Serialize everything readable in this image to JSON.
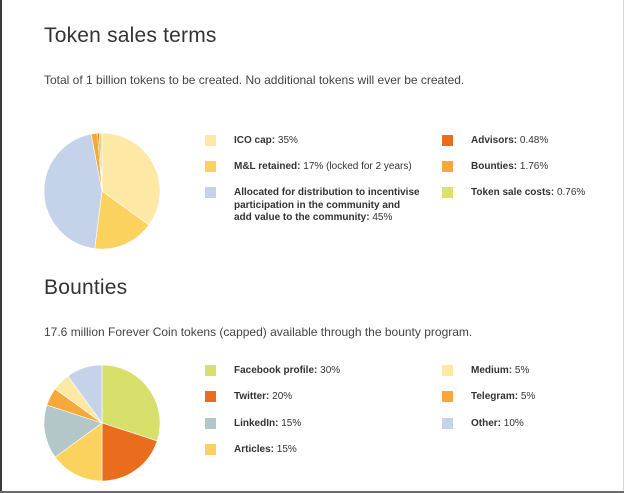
{
  "sections": [
    {
      "heading": "Token sales terms",
      "description": "Total of 1 billion tokens to be created. No additional tokens will ever be created.",
      "legend_left": [
        {
          "name": "ICO cap:",
          "value": "35%",
          "color": "#fde9a5"
        },
        {
          "name": "M&L retained:",
          "value": "17% (locked for 2 years)",
          "color": "#fcd25e"
        },
        {
          "name": "Allocated for distribution to incentivise participation in the community and add value to the community:",
          "value": "45%",
          "color": "#c5d3ea"
        }
      ],
      "legend_right": [
        {
          "name": "Advisors:",
          "value": "0.48%",
          "color": "#ea6d1d"
        },
        {
          "name": "Bounties:",
          "value": "1.76%",
          "color": "#f6a83b"
        },
        {
          "name": "Token sale costs:",
          "value": "0.76%",
          "color": "#d8e36b"
        }
      ]
    },
    {
      "heading": "Bounties",
      "description": "17.6 million Forever Coin tokens (capped) available through the bounty program.",
      "legend_left": [
        {
          "name": "Facebook profile:",
          "value": "30%",
          "color": "#d6e06a"
        },
        {
          "name": "Twitter:",
          "value": "20%",
          "color": "#ea6d1d"
        },
        {
          "name": "LinkedIn:",
          "value": "15%",
          "color": "#b3c6c8"
        },
        {
          "name": "Articles:",
          "value": "15%",
          "color": "#fcd25e"
        }
      ],
      "legend_right": [
        {
          "name": "Medium:",
          "value": "5%",
          "color": "#fde9a5"
        },
        {
          "name": "Telegram:",
          "value": "5%",
          "color": "#f6a83b"
        },
        {
          "name": "Other:",
          "value": "10%",
          "color": "#c5d3ea"
        }
      ]
    }
  ],
  "chart_data": [
    {
      "type": "pie",
      "title": "Token sales terms",
      "categories": [
        "ICO cap",
        "M&L retained",
        "Allocated for distribution to incentivise participation in the community and add value to the community",
        "Bounties",
        "Advisors",
        "Token sale costs"
      ],
      "values": [
        35,
        17,
        45,
        1.76,
        0.48,
        0.76
      ],
      "colors": [
        "#fde9a5",
        "#fcd25e",
        "#c5d3ea",
        "#f6a83b",
        "#ea6d1d",
        "#d8e36b"
      ],
      "start_angle_deg": 0,
      "legend_position": "right"
    },
    {
      "type": "pie",
      "title": "Bounties",
      "categories": [
        "Facebook profile",
        "Twitter",
        "Articles",
        "LinkedIn",
        "Telegram",
        "Medium",
        "Other"
      ],
      "values": [
        30,
        20,
        15,
        15,
        5,
        5,
        10
      ],
      "colors": [
        "#d6e06a",
        "#ea6d1d",
        "#fcd25e",
        "#b3c6c8",
        "#f6a83b",
        "#fde9a5",
        "#c5d3ea"
      ],
      "start_angle_deg": 0,
      "legend_position": "right"
    }
  ]
}
